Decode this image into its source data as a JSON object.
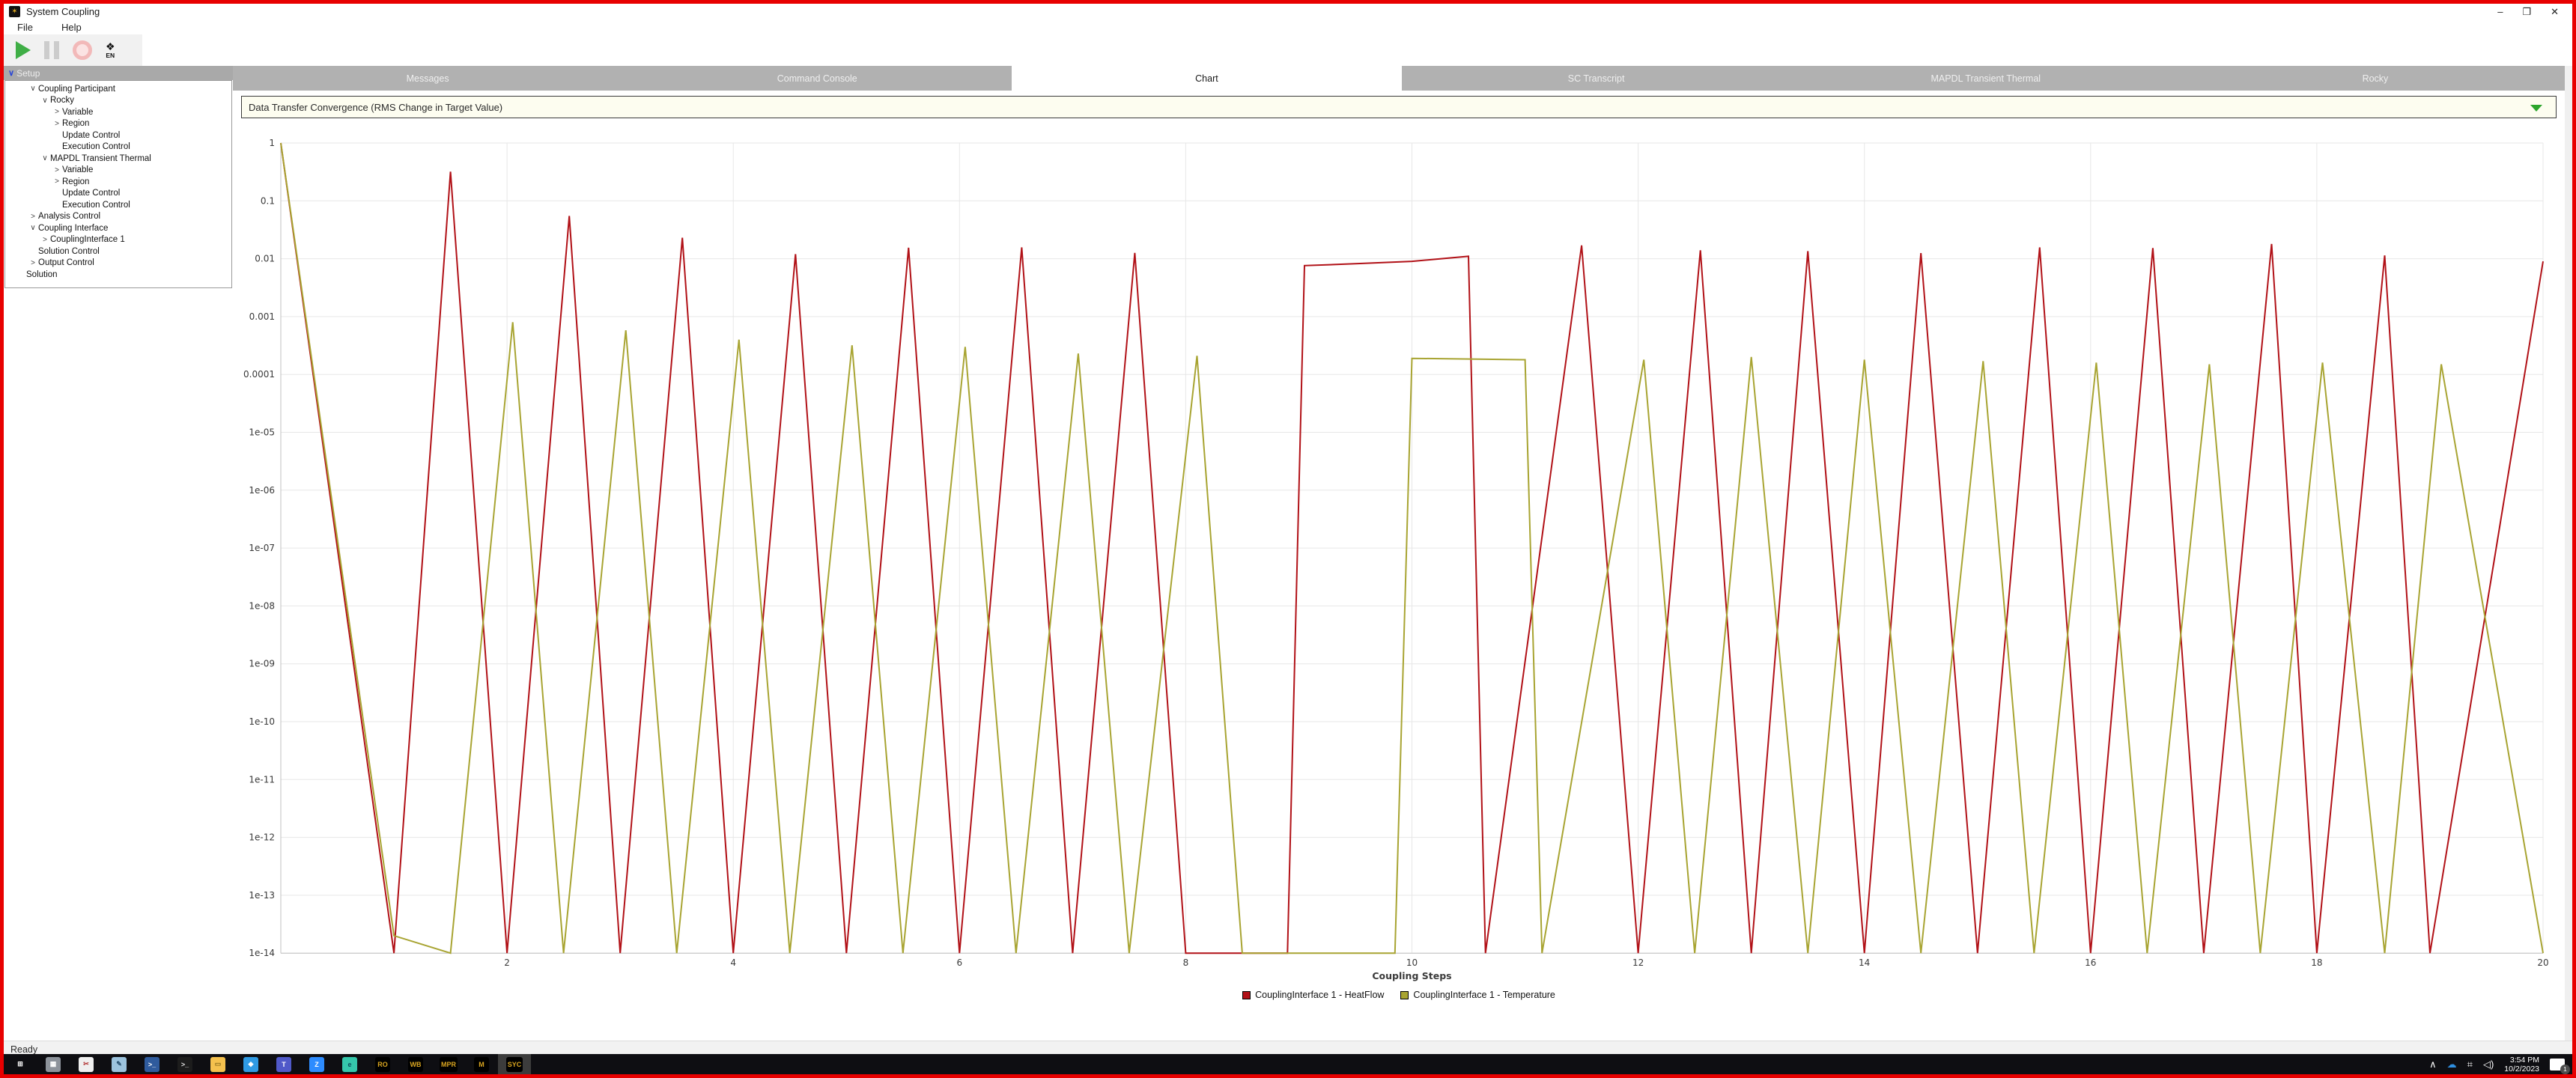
{
  "window": {
    "title": "System Coupling",
    "controls": {
      "minimize": "–",
      "maximize": "❒",
      "close": "✕"
    },
    "app_icon_glyph": "✶"
  },
  "menu": {
    "items": [
      "File",
      "Help"
    ]
  },
  "toolbar": {
    "language_glyph": "❖",
    "language_label": "EN"
  },
  "sidebar": {
    "header": "Setup",
    "header_chevron": "∨",
    "tree": [
      {
        "label": "Coupling Participant",
        "level": 1,
        "chevron": "expanded"
      },
      {
        "label": "Rocky",
        "level": 2,
        "chevron": "expanded"
      },
      {
        "label": "Variable",
        "level": 3,
        "chevron": "collapsed"
      },
      {
        "label": "Region",
        "level": 3,
        "chevron": "collapsed"
      },
      {
        "label": "Update Control",
        "level": 3,
        "chevron": "none"
      },
      {
        "label": "Execution Control",
        "level": 3,
        "chevron": "none"
      },
      {
        "label": "MAPDL Transient Thermal",
        "level": 2,
        "chevron": "expanded"
      },
      {
        "label": "Variable",
        "level": 3,
        "chevron": "collapsed"
      },
      {
        "label": "Region",
        "level": 3,
        "chevron": "collapsed"
      },
      {
        "label": "Update Control",
        "level": 3,
        "chevron": "none"
      },
      {
        "label": "Execution Control",
        "level": 3,
        "chevron": "none"
      },
      {
        "label": "Analysis Control",
        "level": 1,
        "chevron": "collapsed"
      },
      {
        "label": "Coupling Interface",
        "level": 1,
        "chevron": "expanded"
      },
      {
        "label": "CouplingInterface 1",
        "level": 2,
        "chevron": "collapsed"
      },
      {
        "label": "Solution Control",
        "level": 1,
        "chevron": "none"
      },
      {
        "label": "Output Control",
        "level": 1,
        "chevron": "collapsed"
      },
      {
        "label": "Solution",
        "level": 0,
        "chevron": "none"
      }
    ]
  },
  "tabs": [
    {
      "label": "Messages",
      "active": false
    },
    {
      "label": "Command Console",
      "active": false
    },
    {
      "label": "Chart",
      "active": true
    },
    {
      "label": "SC Transcript",
      "active": false
    },
    {
      "label": "MAPDL Transient Thermal",
      "active": false
    },
    {
      "label": "Rocky",
      "active": false
    }
  ],
  "chart_selector": {
    "value": "Data Transfer Convergence (RMS Change in Target Value)",
    "arrow_color": "#2ca52c"
  },
  "chart_data": {
    "type": "line",
    "xlabel": "Coupling Steps",
    "ylabel": "",
    "x_scale": "linear",
    "y_scale": "log",
    "xlim": [
      0,
      20
    ],
    "ylim": [
      1e-14,
      1
    ],
    "x_ticks": [
      2,
      4,
      6,
      8,
      10,
      12,
      14,
      16,
      18,
      20
    ],
    "y_tick_labels": [
      "1",
      "0.1",
      "0.01",
      "0.001",
      "0.0001",
      "1e-05",
      "1e-06",
      "1e-07",
      "1e-08",
      "1e-09",
      "1e-10",
      "1e-11",
      "1e-12",
      "1e-13",
      "1e-14"
    ],
    "grid": true,
    "legend_position": "bottom",
    "colors": {
      "grid": "#e7e7e7",
      "axis": "#c0c0c0",
      "tick_text": "#3a3a3a"
    },
    "series": [
      {
        "name": "CouplingInterface 1 - HeatFlow",
        "color": "#b11117",
        "points": [
          [
            0,
            1
          ],
          [
            1.0,
            1e-14
          ],
          [
            1.5,
            0.32
          ],
          [
            2.0,
            1e-14
          ],
          [
            2.55,
            0.055
          ],
          [
            3.0,
            1e-14
          ],
          [
            3.55,
            0.023
          ],
          [
            4.0,
            1e-14
          ],
          [
            4.55,
            0.012
          ],
          [
            5.0,
            1e-14
          ],
          [
            5.55,
            0.0155
          ],
          [
            6.0,
            1e-14
          ],
          [
            6.55,
            0.0157
          ],
          [
            7.0,
            1e-14
          ],
          [
            7.55,
            0.0126
          ],
          [
            8.0,
            1e-14
          ],
          [
            8.9,
            1e-14
          ],
          [
            9.05,
            0.0076
          ],
          [
            9.5,
            0.0082
          ],
          [
            10.0,
            0.009
          ],
          [
            10.5,
            0.011
          ],
          [
            10.65,
            1e-14
          ],
          [
            11.5,
            0.017
          ],
          [
            12.0,
            1e-14
          ],
          [
            12.55,
            0.014
          ],
          [
            13.0,
            1e-14
          ],
          [
            13.5,
            0.0135
          ],
          [
            14.0,
            1e-14
          ],
          [
            14.5,
            0.0125
          ],
          [
            15.0,
            1e-14
          ],
          [
            15.55,
            0.0157
          ],
          [
            16.0,
            1e-14
          ],
          [
            16.55,
            0.0153
          ],
          [
            17.0,
            1e-14
          ],
          [
            17.6,
            0.018
          ],
          [
            18.0,
            1e-14
          ],
          [
            18.6,
            0.0114
          ],
          [
            19.0,
            1e-14
          ],
          [
            20.0,
            0.009
          ]
        ]
      },
      {
        "name": "CouplingInterface 1 - Temperature",
        "color": "#a8a432",
        "points": [
          [
            0,
            1
          ],
          [
            1.0,
            2e-14
          ],
          [
            1.5,
            1e-14
          ],
          [
            2.05,
            0.0008
          ],
          [
            2.5,
            1e-14
          ],
          [
            3.05,
            0.00058
          ],
          [
            3.5,
            1e-14
          ],
          [
            4.05,
            0.0004
          ],
          [
            4.5,
            1e-14
          ],
          [
            5.05,
            0.00032
          ],
          [
            5.5,
            1e-14
          ],
          [
            6.05,
            0.0003
          ],
          [
            6.5,
            1e-14
          ],
          [
            7.05,
            0.00023
          ],
          [
            7.5,
            1e-14
          ],
          [
            8.1,
            0.00021
          ],
          [
            8.5,
            1e-14
          ],
          [
            9.85,
            1e-14
          ],
          [
            10.0,
            0.00019
          ],
          [
            11.0,
            0.00018
          ],
          [
            11.15,
            1e-14
          ],
          [
            12.05,
            0.00018
          ],
          [
            12.5,
            1e-14
          ],
          [
            13.0,
            0.0002
          ],
          [
            13.5,
            1e-14
          ],
          [
            14.0,
            0.00018
          ],
          [
            14.5,
            1e-14
          ],
          [
            15.05,
            0.00017
          ],
          [
            15.5,
            1e-14
          ],
          [
            16.05,
            0.00016
          ],
          [
            16.5,
            1e-14
          ],
          [
            17.05,
            0.00015
          ],
          [
            17.5,
            1e-14
          ],
          [
            18.05,
            0.00016
          ],
          [
            18.6,
            1e-14
          ],
          [
            19.1,
            0.00015
          ],
          [
            20.0,
            1e-14
          ]
        ]
      }
    ]
  },
  "status_bar": {
    "text": "Ready"
  },
  "taskbar": {
    "pinned": [
      {
        "name": "start",
        "glyph": "⊞",
        "bg": "transparent",
        "fg": "#ffffff",
        "active": false
      },
      {
        "name": "calculator",
        "glyph": "▦",
        "bg": "#8d939b",
        "fg": "#ffffff",
        "active": false
      },
      {
        "name": "snipping-tool",
        "glyph": "✂",
        "bg": "#efefef",
        "fg": "#b03030",
        "active": false
      },
      {
        "name": "notepad",
        "glyph": "✎",
        "bg": "#9cc3de",
        "fg": "#274f6e",
        "active": false
      },
      {
        "name": "powershell",
        "glyph": ">_",
        "bg": "#2f5b9d",
        "fg": "#ffffff",
        "active": false
      },
      {
        "name": "command-prompt",
        "glyph": ">_",
        "bg": "#1c1c1c",
        "fg": "#e0e0e0",
        "active": false
      },
      {
        "name": "file-explorer",
        "glyph": "▭",
        "bg": "#f5c14e",
        "fg": "#8a6d1d",
        "active": false
      },
      {
        "name": "vscode",
        "glyph": "◆",
        "bg": "#2f9ae3",
        "fg": "#ffffff",
        "active": false
      },
      {
        "name": "teams",
        "glyph": "T",
        "bg": "#5059c9",
        "fg": "#ffffff",
        "active": false
      },
      {
        "name": "zoom",
        "glyph": "Z",
        "bg": "#2d8cff",
        "fg": "#ffffff",
        "active": false
      },
      {
        "name": "edge",
        "glyph": "e",
        "bg": "#35c7ab",
        "fg": "#0b4f5c",
        "active": false
      },
      {
        "name": "rocky",
        "glyph": "RO",
        "bg": "#000000",
        "fg": "#d9a520",
        "active": false
      },
      {
        "name": "workbench",
        "glyph": "WB",
        "bg": "#000000",
        "fg": "#d9a520",
        "active": false
      },
      {
        "name": "mpr",
        "glyph": "MPR",
        "bg": "#000000",
        "fg": "#d9a520",
        "active": false
      },
      {
        "name": "mechanical",
        "glyph": "M",
        "bg": "#000000",
        "fg": "#d9a520",
        "active": false
      },
      {
        "name": "system-coupling",
        "glyph": "SYC",
        "bg": "#000000",
        "fg": "#d9a520",
        "active": true
      }
    ],
    "tray": {
      "chevron": "∧",
      "clock_time": "3:54 PM",
      "clock_date": "10/2/2023",
      "notification_count": "1"
    }
  }
}
